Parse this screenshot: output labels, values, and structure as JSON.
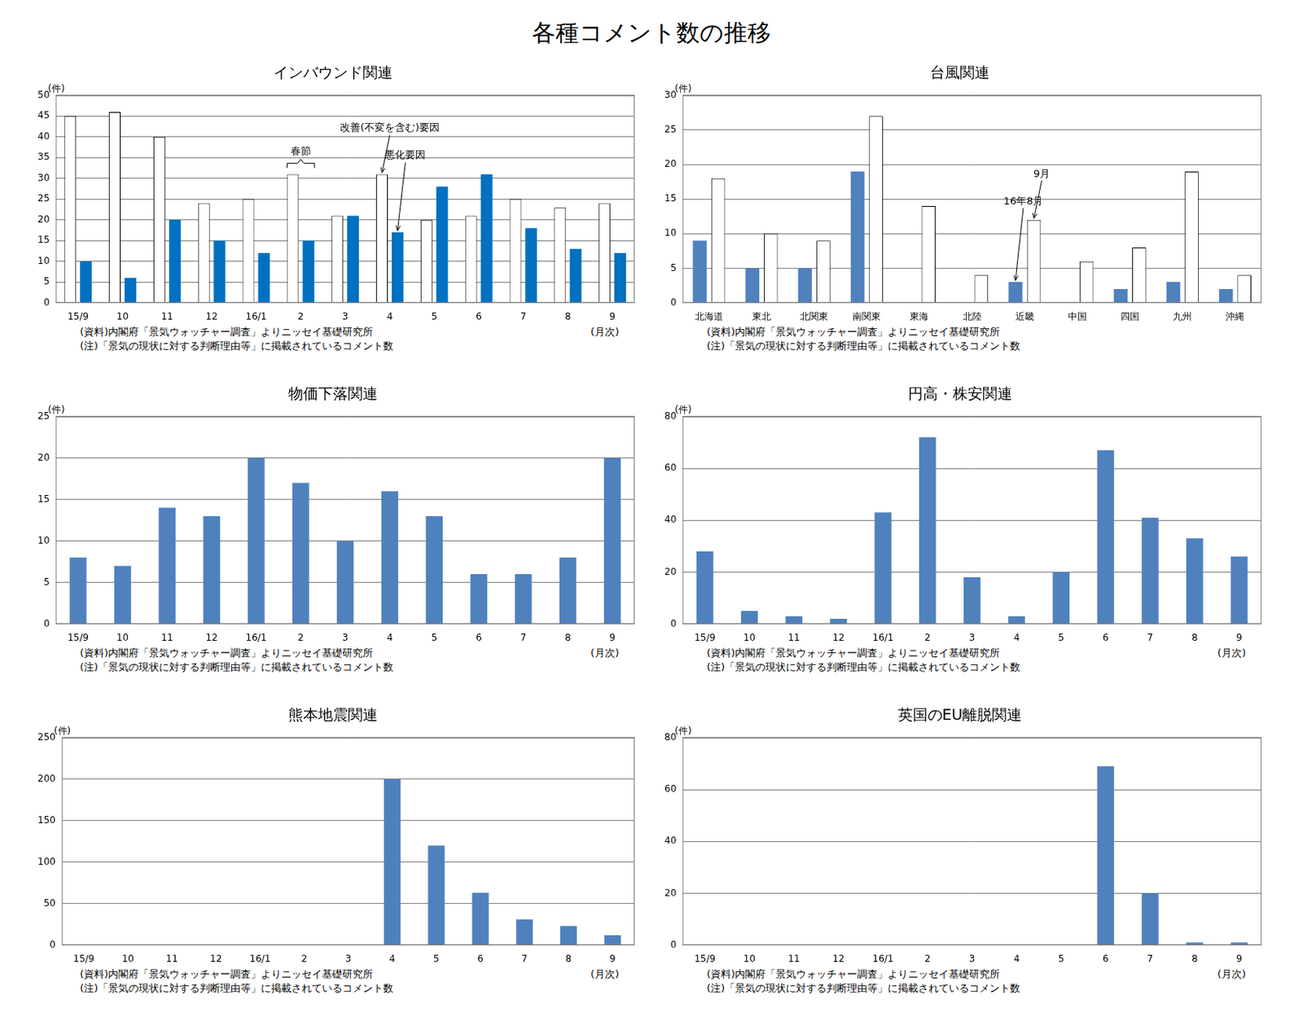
{
  "title": "各種コメント数の推移",
  "chart_data": [
    {
      "type": "bar",
      "title": "インバウンド関連",
      "y_label": "(件)",
      "x_label": "(月次)",
      "notes": [
        "(資料)内閣府「景気ウォッチャー調査」よりニッセイ基礎研究所",
        "(注)「景気の現状に対する判断理由等」に掲載されているコメント数"
      ],
      "categories": [
        "15/9",
        "10",
        "11",
        "12",
        "16/1",
        "2",
        "3",
        "4",
        "5",
        "6",
        "7",
        "8",
        "9"
      ],
      "series": [
        {
          "name": "改善(不変を含む)要因",
          "color": "#ffffff",
          "values": [
            45,
            46,
            40,
            24,
            25,
            31,
            21,
            31,
            20,
            21,
            25,
            23,
            24
          ]
        },
        {
          "name": "悪化要因",
          "color": "#0070c0",
          "values": [
            10,
            6,
            20,
            15,
            12,
            15,
            21,
            17,
            28,
            31,
            18,
            13,
            12
          ]
        }
      ],
      "annotations": [
        {
          "text": "春節",
          "category": "2"
        },
        {
          "text": "改善(不変を含む)要因",
          "category": "4"
        },
        {
          "text": "悪化要因",
          "category": "4"
        }
      ],
      "ylim": [
        0,
        50
      ],
      "yticks": [
        0,
        5,
        10,
        15,
        20,
        25,
        30,
        35,
        40,
        45,
        50
      ],
      "grid": true
    },
    {
      "type": "bar",
      "title": "台風関連",
      "y_label": "(件)",
      "notes": [
        "(資料)内閣府「景気ウォッチャー調査」よりニッセイ基礎研究所",
        "(注)「景気の現状に対する判断理由等」に掲載されているコメント数"
      ],
      "categories": [
        "北海道",
        "東北",
        "北関東",
        "南関東",
        "東海",
        "北陸",
        "近畿",
        "中国",
        "四国",
        "九州",
        "沖縄"
      ],
      "series": [
        {
          "name": "16年8月",
          "color": "#4f81bd",
          "values": [
            9,
            5,
            5,
            19,
            0,
            0,
            3,
            0,
            2,
            3,
            2
          ]
        },
        {
          "name": "9月",
          "color": "#ffffff",
          "values": [
            18,
            10,
            9,
            27,
            14,
            4,
            12,
            6,
            8,
            19,
            4
          ]
        }
      ],
      "annotations": [
        {
          "text": "9月",
          "category": "近畿"
        },
        {
          "text": "16年8月",
          "category": "近畿"
        }
      ],
      "ylim": [
        0,
        30
      ],
      "yticks": [
        0,
        5,
        10,
        15,
        20,
        25,
        30
      ],
      "grid": true
    },
    {
      "type": "bar",
      "title": "物価下落関連",
      "y_label": "(件)",
      "x_label": "(月次)",
      "notes": [
        "(資料)内閣府「景気ウォッチャー調査」よりニッセイ基礎研究所",
        "(注)「景気の現状に対する判断理由等」に掲載されているコメント数"
      ],
      "categories": [
        "15/9",
        "10",
        "11",
        "12",
        "16/1",
        "2",
        "3",
        "4",
        "5",
        "6",
        "7",
        "8",
        "9"
      ],
      "values": [
        8,
        7,
        14,
        13,
        20,
        17,
        10,
        16,
        13,
        6,
        6,
        8,
        20
      ],
      "color": "#4f81bd",
      "ylim": [
        0,
        25
      ],
      "yticks": [
        0,
        5,
        10,
        15,
        20,
        25
      ],
      "grid": true
    },
    {
      "type": "bar",
      "title": "円高・株安関連",
      "y_label": "(件)",
      "x_label": "(月次)",
      "notes": [
        "(資料)内閣府「景気ウォッチャー調査」よりニッセイ基礎研究所",
        "(注)「景気の現状に対する判断理由等」に掲載されているコメント数"
      ],
      "categories": [
        "15/9",
        "10",
        "11",
        "12",
        "16/1",
        "2",
        "3",
        "4",
        "5",
        "6",
        "7",
        "8",
        "9"
      ],
      "values": [
        28,
        5,
        3,
        2,
        43,
        72,
        18,
        3,
        20,
        67,
        41,
        33,
        26
      ],
      "color": "#4f81bd",
      "ylim": [
        0,
        80
      ],
      "yticks": [
        0,
        20,
        40,
        60,
        80
      ],
      "grid": true
    },
    {
      "type": "bar",
      "title": "熊本地震関連",
      "y_label": "(件)",
      "x_label": "(月次)",
      "notes": [
        "(資料)内閣府「景気ウォッチャー調査」よりニッセイ基礎研究所",
        "(注)「景気の現状に対する判断理由等」に掲載されているコメント数"
      ],
      "categories": [
        "15/9",
        "10",
        "11",
        "12",
        "16/1",
        "2",
        "3",
        "4",
        "5",
        "6",
        "7",
        "8",
        "9"
      ],
      "values": [
        0,
        0,
        0,
        0,
        0,
        0,
        0,
        200,
        120,
        63,
        31,
        23,
        12
      ],
      "color": "#4f81bd",
      "ylim": [
        0,
        250
      ],
      "yticks": [
        0,
        50,
        100,
        150,
        200,
        250
      ],
      "grid": true
    },
    {
      "type": "bar",
      "title": "英国のEU離脱関連",
      "y_label": "(件)",
      "x_label": "(月次)",
      "notes": [
        "(資料)内閣府「景気ウォッチャー調査」よりニッセイ基礎研究所",
        "(注)「景気の現状に対する判断理由等」に掲載されているコメント数"
      ],
      "categories": [
        "15/9",
        "10",
        "11",
        "12",
        "16/1",
        "2",
        "3",
        "4",
        "5",
        "6",
        "7",
        "8",
        "9"
      ],
      "values": [
        0,
        0,
        0,
        0,
        0,
        0,
        0,
        0,
        0,
        69,
        20,
        1,
        1
      ],
      "color": "#4f81bd",
      "ylim": [
        0,
        80
      ],
      "yticks": [
        0,
        20,
        40,
        60,
        80
      ],
      "grid": true
    }
  ]
}
